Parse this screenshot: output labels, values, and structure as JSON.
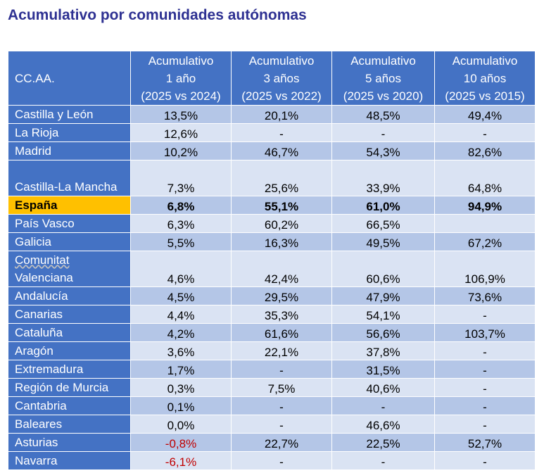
{
  "title": "Acumulativo por comunidades autónomas",
  "colors": {
    "title": "#2e3192",
    "header_bg": "#4472c4",
    "row_band_dark": "#b4c6e7",
    "row_band_light": "#dae3f3",
    "highlight_row": "#ffc000",
    "negative_text": "#c00000"
  },
  "table": {
    "headers": [
      {
        "lines": [
          "CC.AA."
        ]
      },
      {
        "lines": [
          "Acumulativo",
          "1 año",
          "(2025 vs 2024)"
        ]
      },
      {
        "lines": [
          "Acumulativo",
          "3 años",
          "(2025 vs 2022)"
        ]
      },
      {
        "lines": [
          "Acumulativo",
          "5 años",
          "(2025 vs 2020)"
        ]
      },
      {
        "lines": [
          "Acumulativo",
          "10 años",
          "(2025 vs 2015)"
        ]
      }
    ],
    "rows": [
      {
        "name": "Castilla y León",
        "values": [
          "13,5%",
          "20,1%",
          "48,5%",
          "49,4%"
        ]
      },
      {
        "name": "La Rioja",
        "values": [
          "12,6%",
          "-",
          "-",
          "-"
        ]
      },
      {
        "name": "Madrid",
        "values": [
          "10,2%",
          "46,7%",
          "54,3%",
          "82,6%"
        ]
      },
      {
        "name": "Castilla-La Mancha",
        "values": [
          "7,3%",
          "25,6%",
          "33,9%",
          "64,8%"
        ],
        "tall": true
      },
      {
        "name": "España",
        "values": [
          "6,8%",
          "55,1%",
          "61,0%",
          "94,9%"
        ],
        "highlight": true
      },
      {
        "name": "País Vasco",
        "values": [
          "6,3%",
          "60,2%",
          "66,5%",
          ""
        ]
      },
      {
        "name": "Galicia",
        "values": [
          "5,5%",
          "16,3%",
          "49,5%",
          "67,2%"
        ]
      },
      {
        "name": "Comunitat Valenciana",
        "values": [
          "4,6%",
          "42,4%",
          "60,6%",
          "106,9%"
        ],
        "tall": true
      },
      {
        "name": "Andalucía",
        "values": [
          "4,5%",
          "29,5%",
          "47,9%",
          "73,6%"
        ]
      },
      {
        "name": "Canarias",
        "values": [
          "4,4%",
          "35,3%",
          "54,1%",
          "-"
        ]
      },
      {
        "name": "Cataluña",
        "values": [
          "4,2%",
          "61,6%",
          "56,6%",
          "103,7%"
        ]
      },
      {
        "name": "Aragón",
        "values": [
          "3,6%",
          "22,1%",
          "37,8%",
          "-"
        ]
      },
      {
        "name": "Extremadura",
        "values": [
          "1,7%",
          "-",
          "31,5%",
          "-"
        ]
      },
      {
        "name": "Región de Murcia",
        "values": [
          "0,3%",
          "7,5%",
          "40,6%",
          "-"
        ]
      },
      {
        "name": "Cantabria",
        "values": [
          "0,1%",
          "-",
          "-",
          "-"
        ]
      },
      {
        "name": "Baleares",
        "values": [
          "0,0%",
          "-",
          "46,6%",
          "-"
        ]
      },
      {
        "name": "Asturias",
        "values": [
          "-0,8%",
          "22,7%",
          "22,5%",
          "52,7%"
        ]
      },
      {
        "name": "Navarra",
        "values": [
          "-6,1%",
          "-",
          "-",
          "-"
        ]
      }
    ]
  }
}
